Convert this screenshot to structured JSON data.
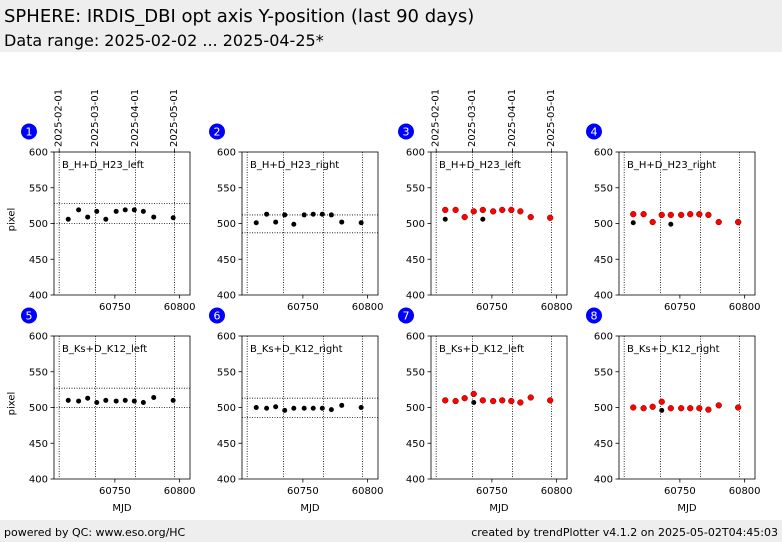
{
  "header": {
    "title": "SPHERE: IRDIS_DBI opt axis Y-position (last 90 days)",
    "subtitle": "Data range: 2025-02-02 ... 2025-04-25*"
  },
  "footer": {
    "left": "powered by QC: www.eso.org/HC",
    "right": "created by trendPlotter v4.1.2 on 2025-05-02T04:45:03"
  },
  "colors": {
    "band_background": "#eeeeee",
    "badge": "#0000ff",
    "badge_text": "#ffffff",
    "series_black": "#000000",
    "series_red": "#ff0000"
  },
  "chart_data": [
    {
      "panel": "1",
      "type": "scatter",
      "label": "B_H+D_H23_left",
      "ylabel": "pixel",
      "xlim": [
        60703,
        60808
      ],
      "ylim": [
        400,
        600
      ],
      "xticks": [
        60750,
        60800
      ],
      "yticks": [
        400,
        450,
        500,
        550,
        600
      ],
      "grid": false,
      "date_ticks": {
        "mjd": [
          60707,
          60735,
          60766,
          60796
        ],
        "labels": [
          "2025-02-01",
          "2025-03-01",
          "2025-04-01",
          "2025-05-01"
        ]
      },
      "vlines": [
        60707,
        60735,
        60766,
        60796
      ],
      "hlines": [
        500,
        528
      ],
      "series": [
        {
          "color": "#000000",
          "x": [
            60714,
            60722,
            60729,
            60736,
            60743,
            60751,
            60758,
            60765,
            60772,
            60780,
            60795
          ],
          "y": [
            506,
            519,
            509,
            517,
            506,
            517,
            519,
            519,
            517,
            509,
            508
          ]
        }
      ]
    },
    {
      "panel": "2",
      "type": "scatter",
      "label": "B_H+D_H23_right",
      "xlim": [
        60703,
        60808
      ],
      "ylim": [
        400,
        600
      ],
      "xticks": [
        60750,
        60800
      ],
      "yticks": [
        400,
        450,
        500,
        550,
        600
      ],
      "grid": false,
      "vlines": [
        60707,
        60735,
        60766,
        60796
      ],
      "hlines": [
        487,
        512
      ],
      "series": [
        {
          "color": "#000000",
          "x": [
            60714,
            60722,
            60729,
            60736,
            60743,
            60751,
            60758,
            60765,
            60772,
            60780,
            60795
          ],
          "y": [
            501,
            513,
            502,
            512,
            499,
            512,
            513,
            513,
            512,
            502,
            501
          ]
        }
      ]
    },
    {
      "panel": "3",
      "type": "scatter",
      "label": "B_H+D_H23_left",
      "xlim": [
        60703,
        60808
      ],
      "ylim": [
        400,
        600
      ],
      "xticks": [
        60750,
        60800
      ],
      "yticks": [
        400,
        450,
        500,
        550,
        600
      ],
      "grid": false,
      "date_ticks": {
        "mjd": [
          60707,
          60735,
          60766,
          60796
        ],
        "labels": [
          "2025-02-01",
          "2025-03-01",
          "2025-04-01",
          "2025-05-01"
        ]
      },
      "vlines": [
        60707,
        60735,
        60766,
        60796
      ],
      "series": [
        {
          "color": "#000000",
          "x": [
            60714,
            60722,
            60729,
            60736,
            60743,
            60751,
            60758,
            60765,
            60772,
            60780,
            60795
          ],
          "y": [
            506,
            519,
            509,
            517,
            506,
            517,
            519,
            519,
            517,
            509,
            508
          ]
        },
        {
          "color": "#ff0000",
          "x": [
            60714,
            60722,
            60729,
            60736,
            60743,
            60751,
            60758,
            60765,
            60772,
            60780,
            60795
          ],
          "y": [
            519,
            519,
            509,
            517,
            519,
            517,
            519,
            519,
            517,
            509,
            508
          ]
        }
      ]
    },
    {
      "panel": "4",
      "type": "scatter",
      "label": "B_H+D_H23_right",
      "xlim": [
        60703,
        60808
      ],
      "ylim": [
        400,
        600
      ],
      "xticks": [
        60750,
        60800
      ],
      "yticks": [
        400,
        450,
        500,
        550,
        600
      ],
      "grid": false,
      "vlines": [
        60707,
        60735,
        60766,
        60796
      ],
      "series": [
        {
          "color": "#000000",
          "x": [
            60714,
            60722,
            60729,
            60736,
            60743,
            60751,
            60758,
            60765,
            60772,
            60780,
            60795
          ],
          "y": [
            501,
            513,
            502,
            512,
            499,
            512,
            513,
            513,
            512,
            502,
            501
          ]
        },
        {
          "color": "#ff0000",
          "x": [
            60714,
            60722,
            60729,
            60736,
            60743,
            60751,
            60758,
            60765,
            60772,
            60780,
            60795
          ],
          "y": [
            513,
            513,
            502,
            512,
            512,
            512,
            513,
            513,
            512,
            502,
            502
          ]
        }
      ]
    },
    {
      "panel": "5",
      "type": "scatter",
      "label": "B_Ks+D_K12_left",
      "ylabel": "pixel",
      "xlabel": "MJD",
      "xlim": [
        60703,
        60808
      ],
      "ylim": [
        400,
        600
      ],
      "xticks": [
        60750,
        60800
      ],
      "yticks": [
        400,
        450,
        500,
        550,
        600
      ],
      "grid": false,
      "vlines": [
        60707,
        60735,
        60766,
        60796
      ],
      "hlines": [
        500,
        527
      ],
      "series": [
        {
          "color": "#000000",
          "x": [
            60714,
            60722,
            60729,
            60736,
            60743,
            60751,
            60758,
            60765,
            60772,
            60780,
            60795
          ],
          "y": [
            510,
            509,
            513,
            507,
            510,
            509,
            510,
            509,
            507,
            514,
            510
          ]
        }
      ]
    },
    {
      "panel": "6",
      "type": "scatter",
      "label": "B_Ks+D_K12_right",
      "xlabel": "MJD",
      "xlim": [
        60703,
        60808
      ],
      "ylim": [
        400,
        600
      ],
      "xticks": [
        60750,
        60800
      ],
      "yticks": [
        400,
        450,
        500,
        550,
        600
      ],
      "grid": false,
      "vlines": [
        60707,
        60735,
        60766,
        60796
      ],
      "hlines": [
        486,
        513
      ],
      "series": [
        {
          "color": "#000000",
          "x": [
            60714,
            60722,
            60729,
            60736,
            60743,
            60751,
            60758,
            60765,
            60772,
            60780,
            60795
          ],
          "y": [
            500,
            499,
            501,
            496,
            499,
            499,
            499,
            499,
            497,
            503,
            500
          ]
        }
      ]
    },
    {
      "panel": "7",
      "type": "scatter",
      "label": "B_Ks+D_K12_left",
      "xlabel": "MJD",
      "xlim": [
        60703,
        60808
      ],
      "ylim": [
        400,
        600
      ],
      "xticks": [
        60750,
        60800
      ],
      "yticks": [
        400,
        450,
        500,
        550,
        600
      ],
      "grid": false,
      "vlines": [
        60707,
        60735,
        60766,
        60796
      ],
      "series": [
        {
          "color": "#000000",
          "x": [
            60714,
            60722,
            60729,
            60736,
            60743,
            60751,
            60758,
            60765,
            60772,
            60780,
            60795
          ],
          "y": [
            510,
            509,
            513,
            507,
            510,
            509,
            510,
            509,
            507,
            514,
            510
          ]
        },
        {
          "color": "#ff0000",
          "x": [
            60714,
            60722,
            60729,
            60736,
            60743,
            60751,
            60758,
            60765,
            60772,
            60780,
            60795
          ],
          "y": [
            510,
            509,
            513,
            519,
            510,
            509,
            510,
            509,
            507,
            514,
            510
          ]
        }
      ]
    },
    {
      "panel": "8",
      "type": "scatter",
      "label": "B_Ks+D_K12_right",
      "xlabel": "MJD",
      "xlim": [
        60703,
        60808
      ],
      "ylim": [
        400,
        600
      ],
      "xticks": [
        60750,
        60800
      ],
      "yticks": [
        400,
        450,
        500,
        550,
        600
      ],
      "grid": false,
      "vlines": [
        60707,
        60735,
        60766,
        60796
      ],
      "series": [
        {
          "color": "#000000",
          "x": [
            60714,
            60722,
            60729,
            60736,
            60743,
            60751,
            60758,
            60765,
            60772,
            60780,
            60795
          ],
          "y": [
            500,
            499,
            501,
            496,
            499,
            499,
            499,
            499,
            497,
            503,
            500
          ]
        },
        {
          "color": "#ff0000",
          "x": [
            60714,
            60722,
            60729,
            60736,
            60743,
            60751,
            60758,
            60765,
            60772,
            60780,
            60795
          ],
          "y": [
            500,
            499,
            501,
            508,
            499,
            499,
            499,
            499,
            497,
            503,
            500
          ]
        }
      ]
    }
  ]
}
